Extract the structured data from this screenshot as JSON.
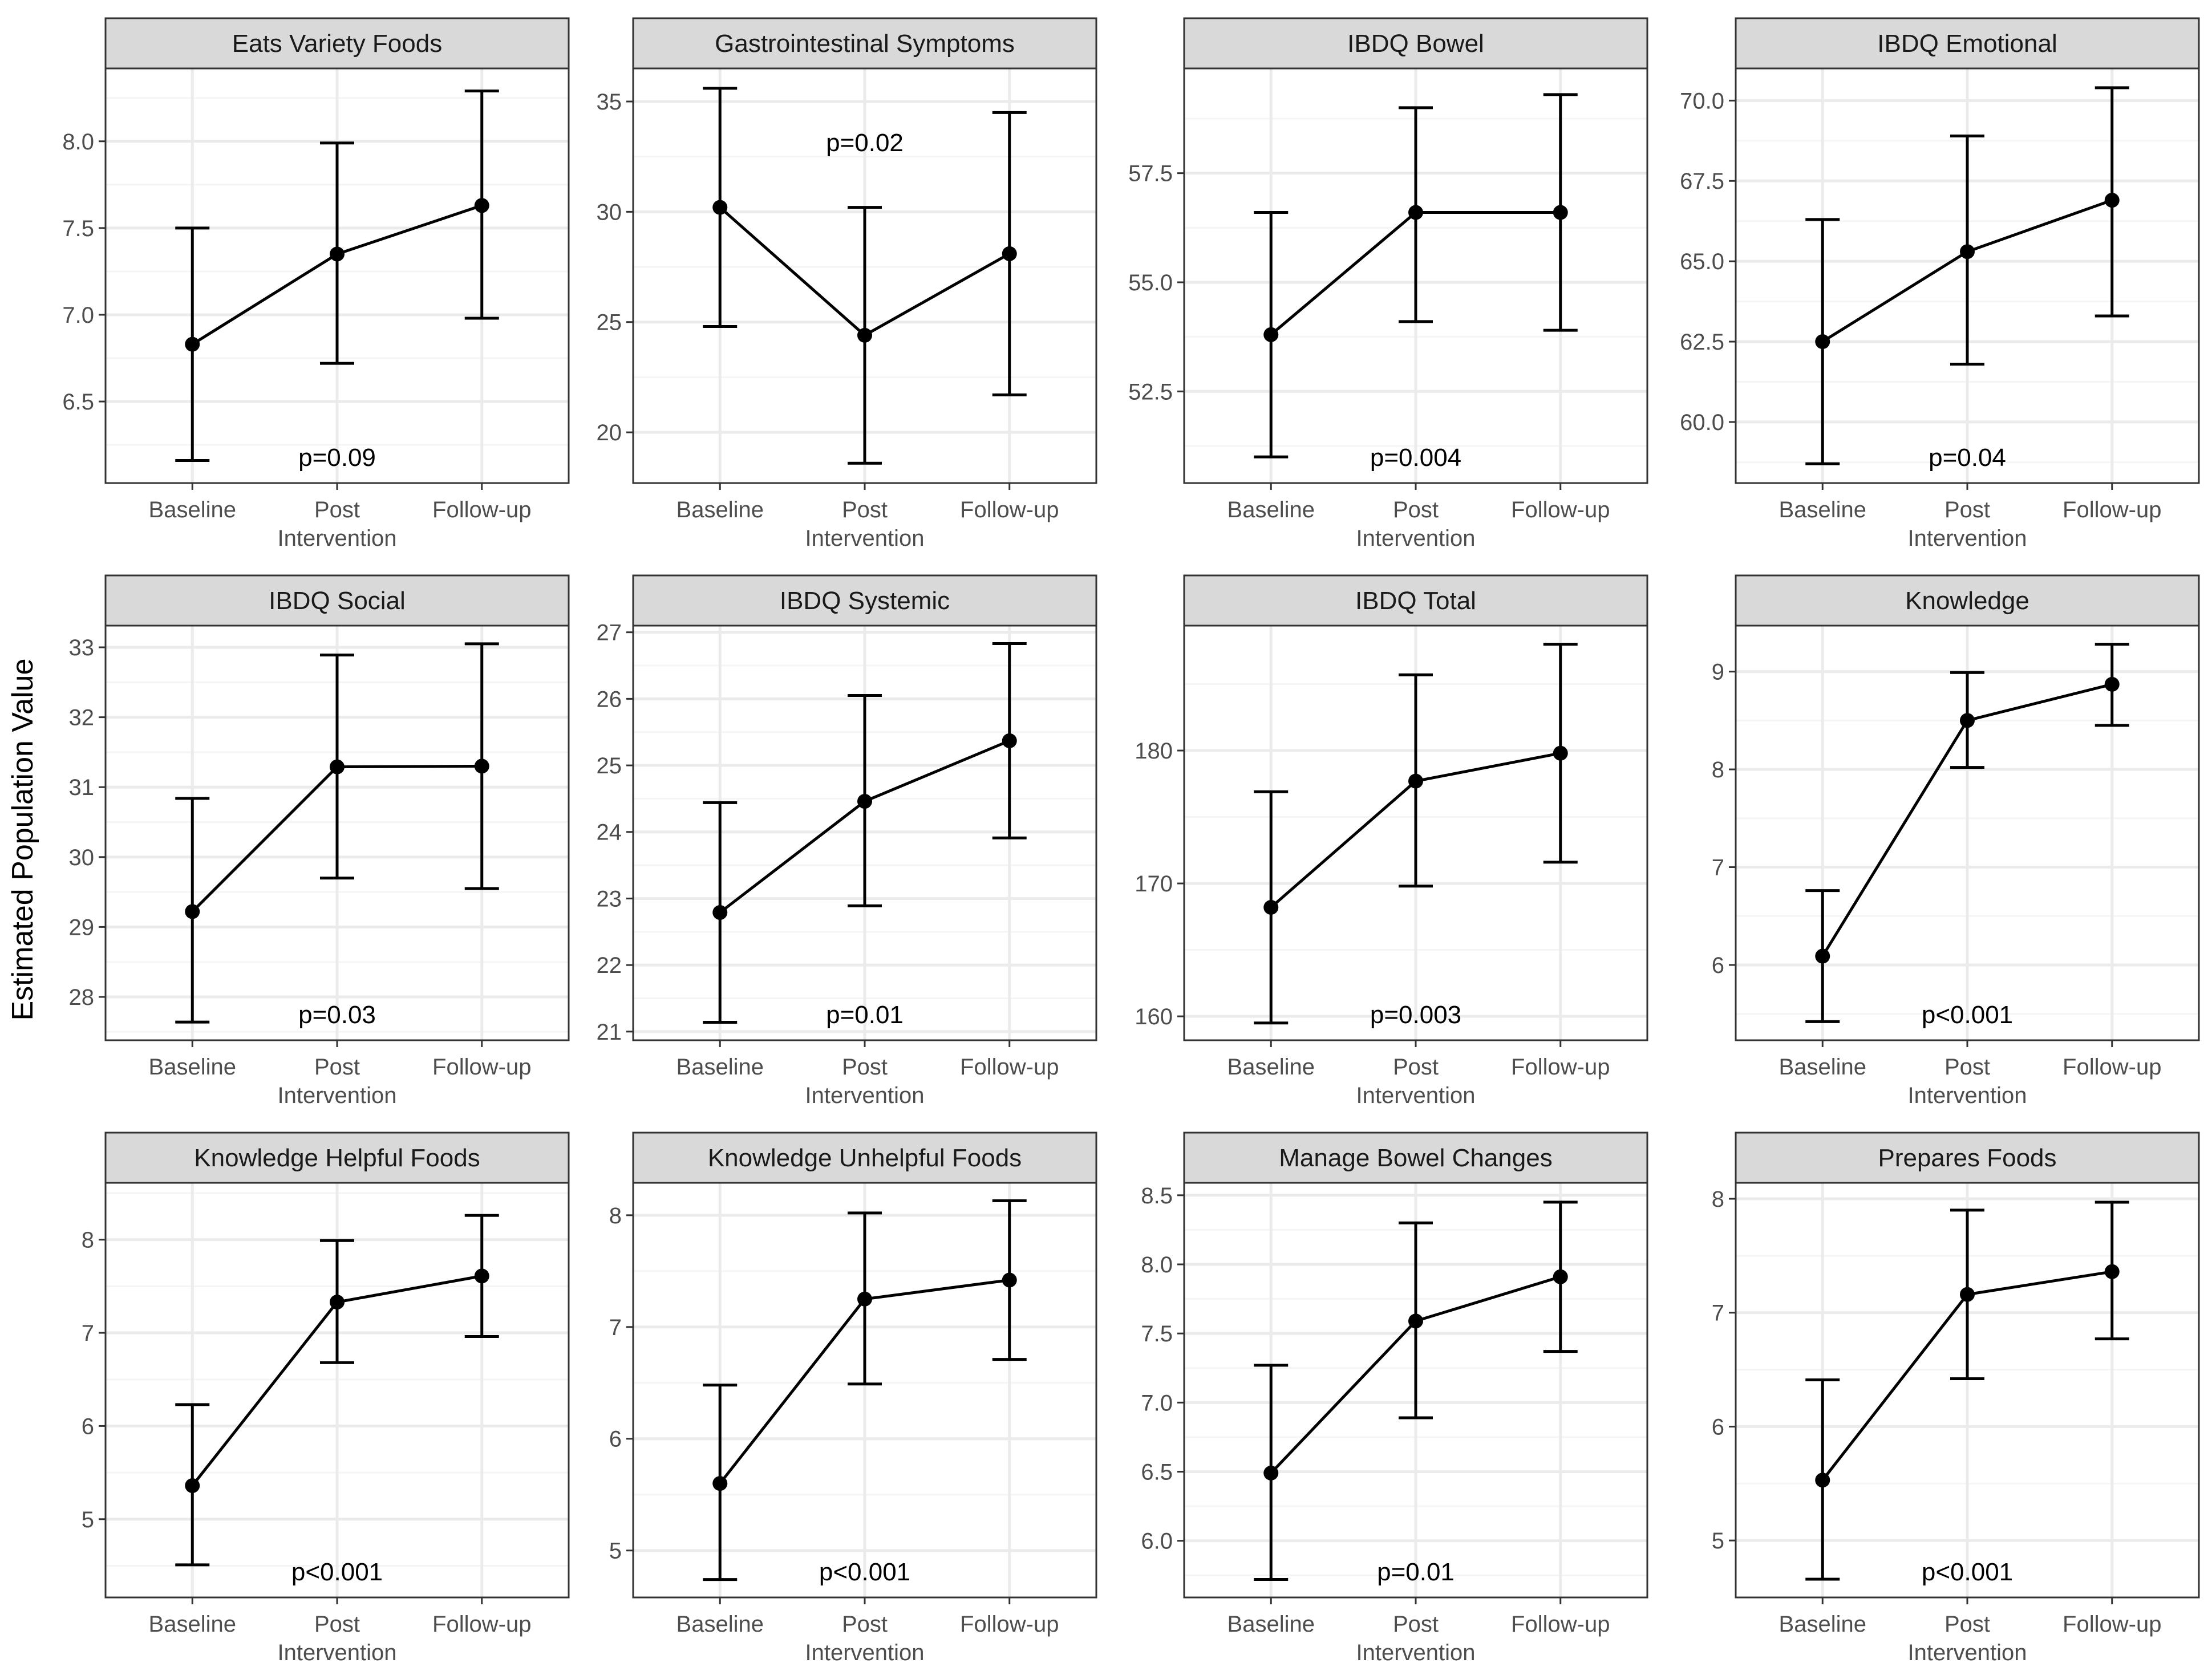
{
  "y_axis_label": "Estimated Population Value",
  "x_categories": [
    "Baseline",
    "Post Intervention",
    "Follow-up"
  ],
  "colors": {
    "strip_fill": "#d9d9d9",
    "strip_border": "#333333",
    "panel_border": "#333333",
    "grid_major": "#ebebeb",
    "grid_minor": "#f5f5f5",
    "line": "#000000",
    "tick_text": "#4d4d4d"
  },
  "chart_data": [
    {
      "type": "line",
      "title": "Eats Variety Foods",
      "categories": [
        "Baseline",
        "Post Intervention",
        "Follow-up"
      ],
      "values": [
        6.83,
        7.35,
        7.63
      ],
      "lower": [
        6.16,
        6.72,
        6.98
      ],
      "upper": [
        7.5,
        7.99,
        8.29
      ],
      "yticks": [
        6.5,
        7.0,
        7.5,
        8.0
      ],
      "ylim": [
        6.03,
        8.42
      ],
      "annotation": "p=0.09",
      "annotation_pos": "bottom"
    },
    {
      "type": "line",
      "title": "Gastrointestinal Symptoms",
      "categories": [
        "Baseline",
        "Post Intervention",
        "Follow-up"
      ],
      "values": [
        30.2,
        24.4,
        28.1
      ],
      "lower": [
        24.8,
        18.6,
        21.7
      ],
      "upper": [
        35.6,
        30.2,
        34.5
      ],
      "yticks": [
        20,
        25,
        30,
        35
      ],
      "ylim": [
        17.7,
        36.5
      ],
      "annotation": "p=0.02",
      "annotation_pos": "top"
    },
    {
      "type": "line",
      "title": "IBDQ Bowel",
      "categories": [
        "Baseline",
        "Post Intervention",
        "Follow-up"
      ],
      "values": [
        53.8,
        56.6,
        56.6
      ],
      "lower": [
        51.0,
        54.1,
        53.9
      ],
      "upper": [
        56.6,
        59.0,
        59.3
      ],
      "yticks": [
        52.5,
        55.0,
        57.5
      ],
      "ylim": [
        50.4,
        59.9
      ],
      "annotation": "p=0.004",
      "annotation_pos": "bottom"
    },
    {
      "type": "line",
      "title": "IBDQ Emotional",
      "categories": [
        "Baseline",
        "Post Intervention",
        "Follow-up"
      ],
      "values": [
        62.5,
        65.3,
        66.9
      ],
      "lower": [
        58.7,
        61.8,
        63.3
      ],
      "upper": [
        66.3,
        68.9,
        70.4
      ],
      "yticks": [
        60.0,
        62.5,
        65.0,
        67.5,
        70.0
      ],
      "ylim": [
        58.1,
        71.0
      ],
      "annotation": "p=0.04",
      "annotation_pos": "bottom"
    },
    {
      "type": "line",
      "title": "IBDQ Social",
      "categories": [
        "Baseline",
        "Post Intervention",
        "Follow-up"
      ],
      "values": [
        29.22,
        31.29,
        31.3
      ],
      "lower": [
        27.64,
        29.7,
        29.55
      ],
      "upper": [
        30.84,
        32.89,
        33.05
      ],
      "yticks": [
        28,
        29,
        30,
        31,
        32,
        33
      ],
      "ylim": [
        27.38,
        33.31
      ],
      "annotation": "p=0.03",
      "annotation_pos": "bottom"
    },
    {
      "type": "line",
      "title": "IBDQ Systemic",
      "categories": [
        "Baseline",
        "Post Intervention",
        "Follow-up"
      ],
      "values": [
        22.79,
        24.46,
        25.37
      ],
      "lower": [
        21.14,
        22.89,
        23.91
      ],
      "upper": [
        24.44,
        26.05,
        26.83
      ],
      "yticks": [
        21,
        22,
        23,
        24,
        25,
        26,
        27
      ],
      "ylim": [
        20.87,
        27.1
      ],
      "annotation": "p=0.01",
      "annotation_pos": "bottom"
    },
    {
      "type": "line",
      "title": "IBDQ Total",
      "categories": [
        "Baseline",
        "Post Intervention",
        "Follow-up"
      ],
      "values": [
        168.2,
        177.7,
        179.8
      ],
      "lower": [
        159.5,
        169.8,
        171.6
      ],
      "upper": [
        176.9,
        185.7,
        188.0
      ],
      "yticks": [
        160,
        170,
        180
      ],
      "ylim": [
        158.2,
        189.4
      ],
      "annotation": "p=0.003",
      "annotation_pos": "bottom"
    },
    {
      "type": "line",
      "title": "Knowledge",
      "categories": [
        "Baseline",
        "Post Intervention",
        "Follow-up"
      ],
      "values": [
        6.09,
        8.5,
        8.87
      ],
      "lower": [
        5.42,
        8.02,
        8.45
      ],
      "upper": [
        6.76,
        8.99,
        9.28
      ],
      "yticks": [
        6,
        7,
        8,
        9
      ],
      "ylim": [
        5.23,
        9.47
      ],
      "annotation": "p<0.001",
      "annotation_pos": "bottom"
    },
    {
      "type": "line",
      "title": "Knowledge Helpful Foods",
      "categories": [
        "Baseline",
        "Post Intervention",
        "Follow-up"
      ],
      "values": [
        5.36,
        7.33,
        7.61
      ],
      "lower": [
        4.51,
        6.68,
        6.96
      ],
      "upper": [
        6.23,
        7.99,
        8.26
      ],
      "yticks": [
        5,
        6,
        7,
        8
      ],
      "ylim": [
        4.16,
        8.61
      ],
      "annotation": "p<0.001",
      "annotation_pos": "bottom"
    },
    {
      "type": "line",
      "title": "Knowledge Unhelpful Foods",
      "categories": [
        "Baseline",
        "Post Intervention",
        "Follow-up"
      ],
      "values": [
        5.6,
        7.25,
        7.42
      ],
      "lower": [
        4.74,
        6.49,
        6.71
      ],
      "upper": [
        6.48,
        8.02,
        8.13
      ],
      "yticks": [
        5,
        6,
        7,
        8
      ],
      "ylim": [
        4.58,
        8.29
      ],
      "annotation": "p<0.001",
      "annotation_pos": "bottom"
    },
    {
      "type": "line",
      "title": "Manage Bowel Changes",
      "categories": [
        "Baseline",
        "Post Intervention",
        "Follow-up"
      ],
      "values": [
        6.49,
        7.59,
        7.91
      ],
      "lower": [
        5.72,
        6.89,
        7.37
      ],
      "upper": [
        7.27,
        8.3,
        8.45
      ],
      "yticks": [
        6.0,
        6.5,
        7.0,
        7.5,
        8.0,
        8.5
      ],
      "ylim": [
        5.59,
        8.59
      ],
      "annotation": "p=0.01",
      "annotation_pos": "bottom"
    },
    {
      "type": "line",
      "title": "Prepares Foods",
      "categories": [
        "Baseline",
        "Post Intervention",
        "Follow-up"
      ],
      "values": [
        5.53,
        7.16,
        7.36
      ],
      "lower": [
        4.66,
        6.42,
        6.77
      ],
      "upper": [
        6.41,
        7.9,
        7.97
      ],
      "yticks": [
        5,
        6,
        7,
        8
      ],
      "ylim": [
        4.5,
        8.14
      ],
      "annotation": "p<0.001",
      "annotation_pos": "bottom"
    }
  ]
}
